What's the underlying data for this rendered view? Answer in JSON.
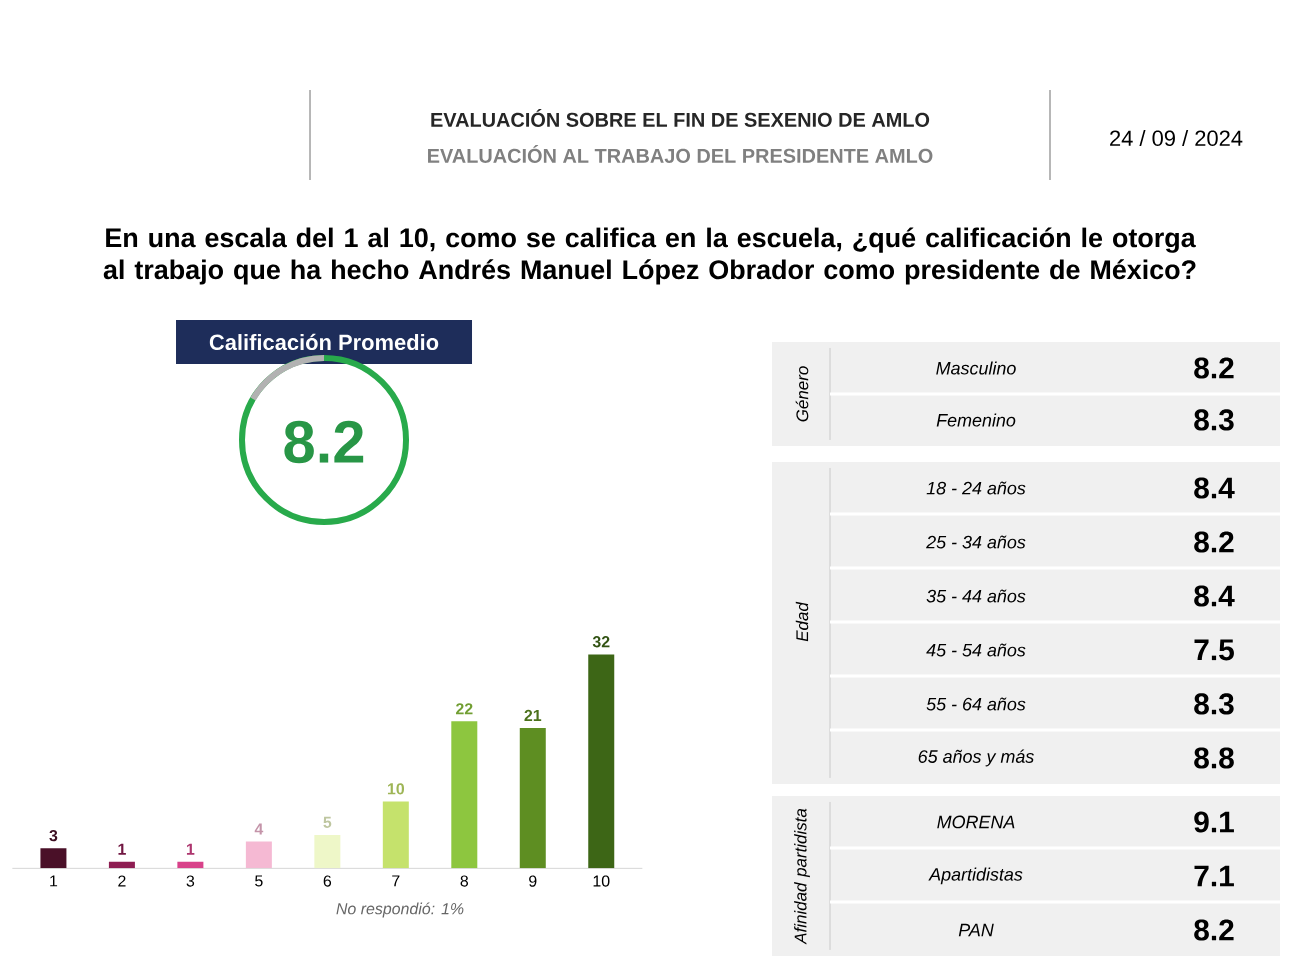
{
  "chart_data": [
    {
      "type": "bar",
      "title": "EVALUACIÓN SOBRE EL FIN DE SEXENIO DE AMLO",
      "subtitle": "EVALUACIÓN AL TRABAJO DEL PRESIDENTE AMLO",
      "annotations": [
        "24 / 09 / 2024",
        "En una escala del 1 al 10, como se califica en la escuela, ¿qué calificación le otorga al trabajo que ha hecho Andrés Manuel López Obrador como presidente de México?",
        "Calificación Promedio",
        "8.2",
        "No respondió: 1%"
      ],
      "categories": [
        "1",
        "2",
        "3",
        "5",
        "6",
        "7",
        "8",
        "9",
        "10"
      ],
      "values": [
        3,
        1,
        1,
        4,
        5,
        10,
        22,
        21,
        32
      ],
      "colors": [
        "#4a1028",
        "#8e1d52",
        "#d8428a",
        "#f5b9d3",
        "#eef7c8",
        "#c5e26c",
        "#8dc63f",
        "#5e8e22",
        "#3d6616"
      ],
      "data_labels": true
    },
    {
      "type": "other",
      "categories": [
        "Masculino",
        "Femenino",
        "18 - 24 años",
        "25 - 34 años",
        "35 - 44 años",
        "45 - 54 años",
        "55 - 64 años",
        "65 años y más",
        "MORENA",
        "Apartidistas",
        "PAN"
      ],
      "series": [
        {
          "name": "Género",
          "values": [
            8.2,
            8.3,
            null,
            null,
            null,
            null,
            null,
            null,
            null,
            null,
            null
          ]
        },
        {
          "name": "Edad",
          "values": [
            null,
            null,
            8.4,
            8.2,
            8.4,
            7.5,
            8.3,
            8.8,
            null,
            null,
            null
          ]
        },
        {
          "name": "Afinidad partidista",
          "values": [
            null,
            null,
            null,
            null,
            null,
            null,
            null,
            null,
            9.1,
            7.1,
            8.2
          ]
        }
      ],
      "data_labels": true
    }
  ]
}
